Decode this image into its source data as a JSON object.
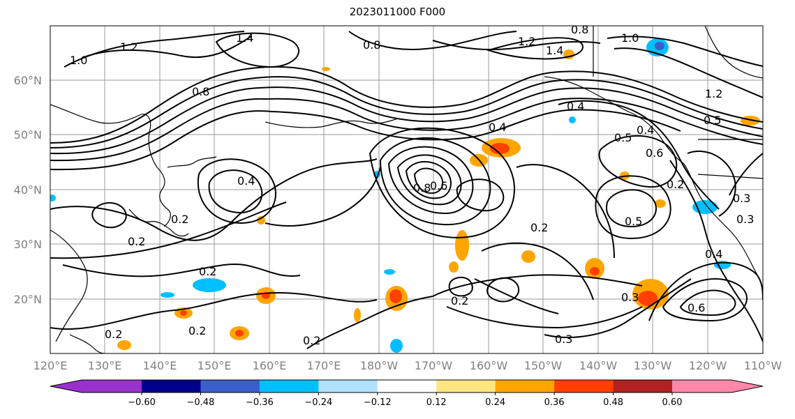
{
  "title": "2023011000 F000",
  "map": {
    "lat_ticks": [
      "60°N",
      "50°N",
      "40°N",
      "30°N",
      "20°N"
    ],
    "lon_ticks": [
      "120°E",
      "130°E",
      "140°E",
      "150°E",
      "160°E",
      "170°E",
      "180°W",
      "170°W",
      "160°W",
      "150°W",
      "140°W",
      "130°W",
      "120°W",
      "110°W"
    ],
    "contour_labels": [
      "1.2",
      "1.4",
      "0.8",
      "1.2",
      "1.4",
      "0.8",
      "1.0",
      "1.0",
      "1.2",
      "0.8",
      "0.4",
      "0.4",
      "0.4",
      "0.8",
      "0.6",
      "0.4",
      "0.2",
      "0.2",
      "0.2",
      "0.2",
      "0.2",
      "0.2",
      "0.2",
      "0.3",
      "0.3",
      "0.5",
      "0.5",
      "0.6",
      "0.2",
      "0.5",
      "0.6",
      "0.3",
      "0.2",
      "0.4",
      "0.3"
    ]
  },
  "colorbar": {
    "ticks": [
      "−0.60",
      "−0.48",
      "−0.36",
      "−0.24",
      "−0.12",
      "0.12",
      "0.24",
      "0.36",
      "0.48",
      "0.60"
    ],
    "colors": [
      "#9932cc",
      "#00008b",
      "#3a5fcd",
      "#00bfff",
      "#b0e2ff",
      "#ffffff",
      "#ffe680",
      "#ffa500",
      "#ff4000",
      "#b22222",
      "#ff88aa"
    ]
  },
  "colors": {
    "pos1": "#ffe680",
    "pos2": "#ffa500",
    "pos3": "#ff4000",
    "neg1": "#b0e2ff",
    "neg2": "#00bfff",
    "neg3": "#3a5fcd",
    "grid": "#999999"
  }
}
